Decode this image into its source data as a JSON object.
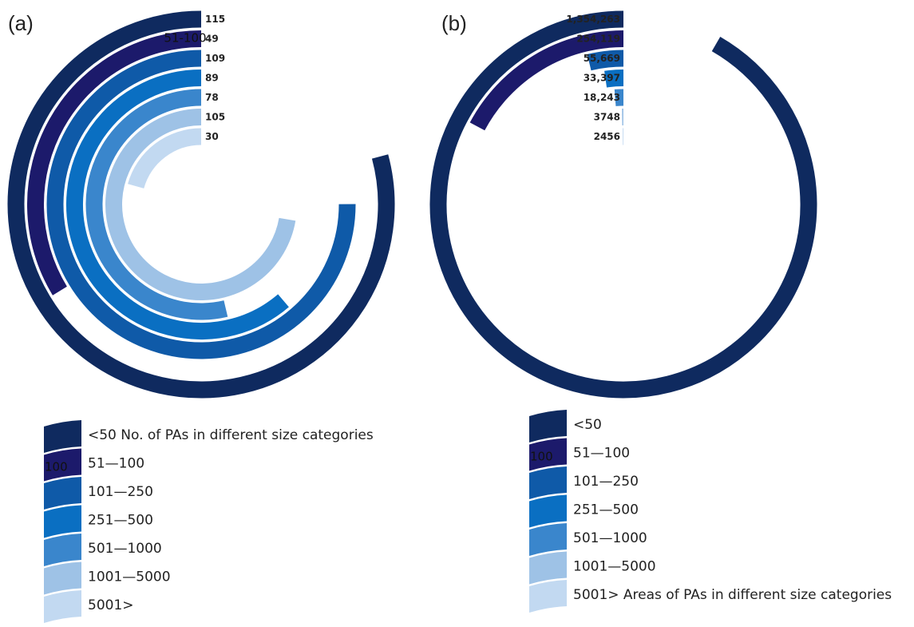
{
  "panels": [
    {
      "id": "a",
      "label": "(a)"
    },
    {
      "id": "b",
      "label": "(b)"
    }
  ],
  "chart_data": [
    {
      "type": "radial-bar",
      "panel": "(a)",
      "title": "No. of PAs in different size categories",
      "categories": [
        "<50",
        "51—100",
        "101—250",
        "251—500",
        "501—1000",
        "1001—5000",
        "5001>"
      ],
      "values": [
        115,
        49,
        109,
        89,
        78,
        105,
        30
      ],
      "value_labels": [
        "115",
        "49",
        "109",
        "89",
        "78",
        "105",
        "30"
      ],
      "ring_annotation": "51-100",
      "max_value": 115,
      "max_sweep_degrees": 285,
      "legend_title": "No. of PAs in different size categories",
      "legend_swatch_annotation": "100",
      "colors": [
        "#0f2a5f",
        "#1c1a6b",
        "#0f5aa8",
        "#0a6fc2",
        "#3a86cc",
        "#9ec2e6",
        "#c2d9f1"
      ]
    },
    {
      "type": "radial-bar",
      "panel": "(b)",
      "title": "Areas of PAs in different size categories",
      "categories": [
        "<50",
        "51—100",
        "101—250",
        "251—500",
        "501—1000",
        "1001—5000",
        "5001>"
      ],
      "values": [
        1354263,
        254119,
        55669,
        33397,
        18243,
        3748,
        2456
      ],
      "value_labels": [
        "1,354,263",
        "254,119",
        "55,669",
        "33,397",
        "18,243",
        "3748",
        "2456"
      ],
      "max_value": 1354263,
      "max_sweep_degrees": 330,
      "legend_title": "Areas of PAs in different size categories",
      "legend_swatch_annotation": "100",
      "colors": [
        "#0f2a5f",
        "#1c1a6b",
        "#0f5aa8",
        "#0a6fc2",
        "#3a86cc",
        "#9ec2e6",
        "#c2d9f1"
      ]
    }
  ]
}
